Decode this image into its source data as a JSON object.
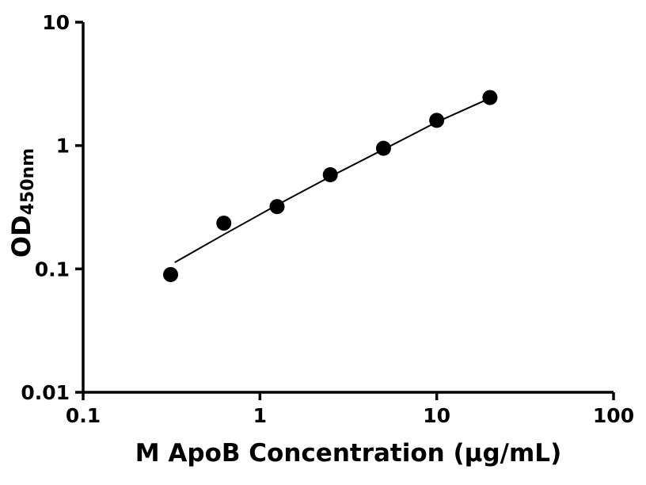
{
  "figure": {
    "background": "#ffffff",
    "colors": {
      "axis": "#000000",
      "marker": "#000000",
      "line": "#000000",
      "text": "#000000"
    }
  },
  "chart_data": {
    "type": "scatter",
    "title": "",
    "xlabel": "M ApoB Concentration (μg/mL)",
    "ylabel_main": "OD",
    "ylabel_sub": "450nm",
    "x_scale": "log",
    "y_scale": "log",
    "xlim": [
      0.1,
      100
    ],
    "ylim": [
      0.01,
      10
    ],
    "grid": false,
    "legend": false,
    "x_ticks": {
      "values": [
        0.1,
        1,
        10,
        100
      ],
      "labels": [
        "0.1",
        "1",
        "10",
        "100"
      ]
    },
    "y_ticks": {
      "values": [
        0.01,
        0.1,
        1,
        10
      ],
      "labels": [
        "0.01",
        "0.1",
        "1",
        "10"
      ]
    },
    "series": [
      {
        "name": "fit-line",
        "type": "line",
        "color": "#000000",
        "x": [
          0.33,
          0.625,
          1.25,
          2.5,
          5,
          10,
          20
        ],
        "y": [
          0.113,
          0.19,
          0.33,
          0.56,
          0.93,
          1.55,
          2.42
        ]
      },
      {
        "name": "standard-points",
        "type": "scatter",
        "marker": "circle",
        "color": "#000000",
        "x": [
          0.3125,
          0.625,
          1.25,
          2.5,
          5,
          10,
          20
        ],
        "y": [
          0.09,
          0.235,
          0.32,
          0.58,
          0.95,
          1.6,
          2.45
        ]
      }
    ]
  }
}
